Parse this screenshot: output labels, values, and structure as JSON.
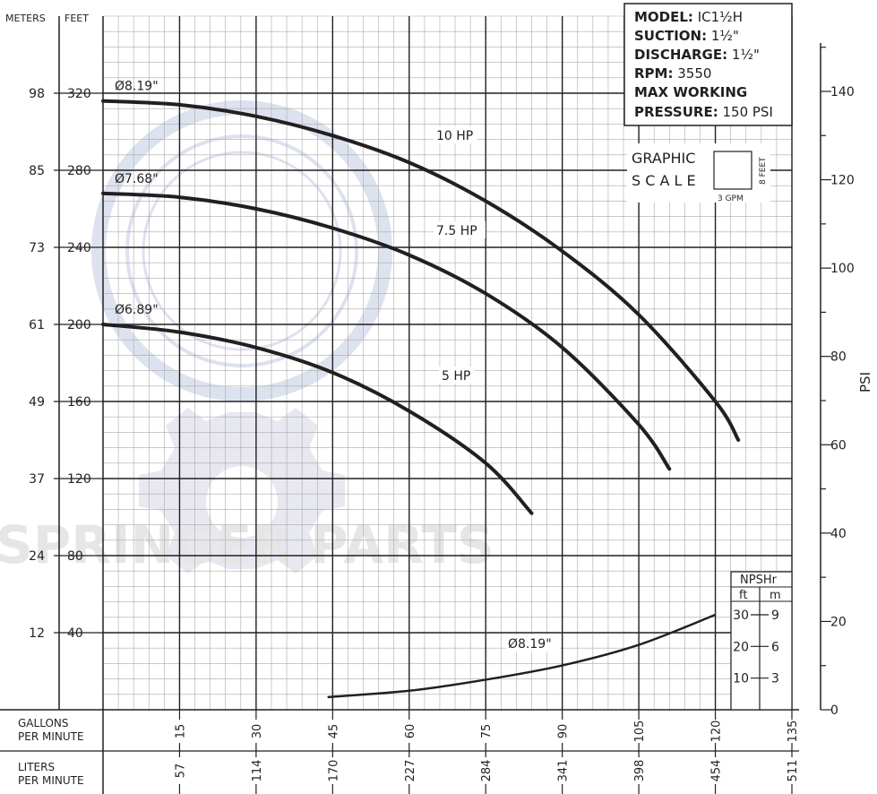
{
  "chart_data": {
    "type": "line",
    "left_axis_headers": {
      "meters": "METERS",
      "feet": "FEET"
    },
    "left_axis_feet_ticks": [
      "320",
      "280",
      "240",
      "200",
      "160",
      "120",
      "80",
      "40"
    ],
    "left_axis_feet_values": [
      320,
      280,
      240,
      200,
      160,
      120,
      80,
      40
    ],
    "left_axis_meter_ticks": [
      "98",
      "85",
      "73",
      "61",
      "49",
      "37",
      "24",
      "12"
    ],
    "ylim_feet": [
      0,
      360
    ],
    "right_axis_label": "PSI",
    "right_axis_ticks": [
      "140",
      "120",
      "100",
      "80",
      "60",
      "40",
      "20",
      "0"
    ],
    "right_axis_tick_values": [
      140,
      120,
      100,
      80,
      60,
      40,
      20,
      0
    ],
    "x_axis_gpm_label": "GALLONS PER MINUTE",
    "x_axis_gpm_ticks": [
      "15",
      "30",
      "45",
      "60",
      "75",
      "90",
      "105",
      "120",
      "135"
    ],
    "x_axis_gpm_values": [
      15,
      30,
      45,
      60,
      75,
      90,
      105,
      120,
      135
    ],
    "x_axis_lpm_label": "LITERS PER MINUTE",
    "x_axis_lpm_ticks": [
      "57",
      "114",
      "170",
      "227",
      "284",
      "341",
      "398",
      "454",
      "511"
    ],
    "xlim_gpm": [
      0,
      135
    ],
    "series": [
      {
        "name": "Ø8.19\"",
        "power_label": "10 HP",
        "x": [
          0,
          15,
          30,
          45,
          60,
          75,
          90,
          105,
          120,
          124.5
        ],
        "y": [
          316,
          314,
          308,
          298,
          284,
          264,
          238,
          205,
          160,
          140
        ]
      },
      {
        "name": "Ø7.68\"",
        "power_label": "7.5 HP",
        "x": [
          0,
          15,
          30,
          45,
          60,
          75,
          90,
          105,
          111
        ],
        "y": [
          268,
          266,
          260,
          250,
          236,
          216,
          188,
          148,
          125
        ]
      },
      {
        "name": "Ø6.89\"",
        "power_label": "5 HP",
        "x": [
          0,
          15,
          30,
          45,
          60,
          75,
          84
        ],
        "y": [
          200,
          196,
          188,
          175,
          155,
          128,
          102
        ]
      }
    ],
    "npshr_series": {
      "name": "Ø8.19\"",
      "x": [
        44,
        60,
        75,
        90,
        105,
        120
      ],
      "y_ft": [
        4,
        6,
        9.5,
        14,
        20.5,
        30
      ]
    },
    "npshr_scale": {
      "title": "NPSHr",
      "col_ft": "ft",
      "col_m": "m",
      "ft_ticks": [
        "30",
        "20",
        "10"
      ],
      "m_ticks": [
        "9",
        "6",
        "3"
      ]
    },
    "grid": true
  },
  "info_box": {
    "model_label": "MODEL:",
    "model_value": "IC1½H",
    "suction_label": "SUCTION:",
    "suction_value": "1½\"",
    "discharge_label": "DISCHARGE:",
    "discharge_value": "1½\"",
    "rpm_label": "RPM:",
    "rpm_value": "3550",
    "max_working_label": "MAX WORKING",
    "pressure_label": "PRESSURE:",
    "pressure_value": "150 PSI"
  },
  "graphic_scale": {
    "line1": "GRAPHIC",
    "line2": "S C A L E",
    "feet_label": "8 FEET",
    "gpm_label": "3 GPM"
  },
  "watermark_text": "SPRINGER PARTS",
  "colors": {
    "ink": "#231f20",
    "grid_minor": "#8c8c8c",
    "watermark": "#c9d0e4",
    "watermark_gray": "#d3d3d3"
  }
}
